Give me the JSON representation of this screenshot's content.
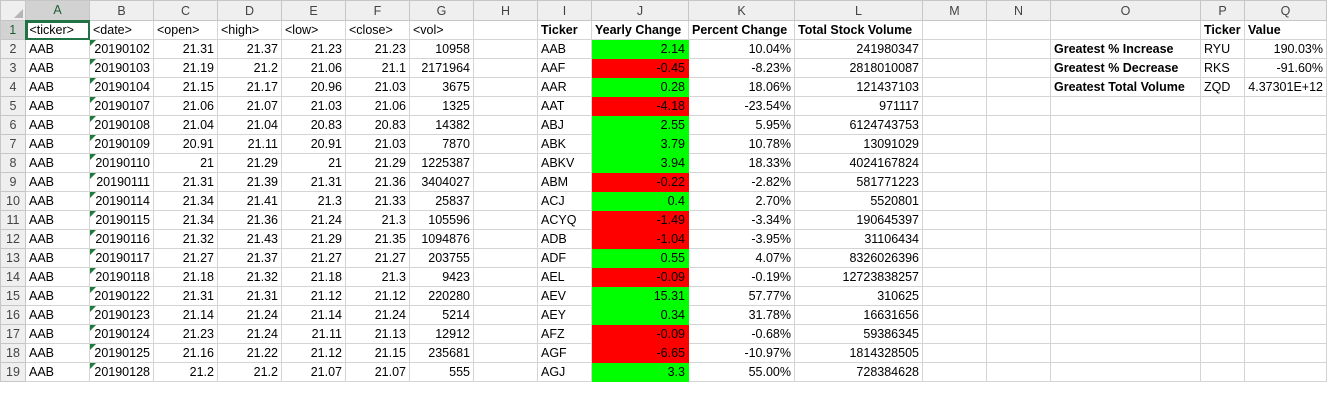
{
  "columns": [
    "A",
    "B",
    "C",
    "D",
    "E",
    "F",
    "G",
    "H",
    "I",
    "J",
    "K",
    "L",
    "M",
    "N",
    "O",
    "P",
    "Q"
  ],
  "header_row": [
    "<ticker>",
    "<date>",
    "<open>",
    "<high>",
    "<low>",
    "<close>",
    "<vol>"
  ],
  "raw_rows": [
    [
      "AAB",
      "20190102",
      "21.31",
      "21.37",
      "21.23",
      "21.23",
      "10958"
    ],
    [
      "AAB",
      "20190103",
      "21.19",
      "21.2",
      "21.06",
      "21.1",
      "2171964"
    ],
    [
      "AAB",
      "20190104",
      "21.15",
      "21.17",
      "20.96",
      "21.03",
      "3675"
    ],
    [
      "AAB",
      "20190107",
      "21.06",
      "21.07",
      "21.03",
      "21.06",
      "1325"
    ],
    [
      "AAB",
      "20190108",
      "21.04",
      "21.04",
      "20.83",
      "20.83",
      "14382"
    ],
    [
      "AAB",
      "20190109",
      "20.91",
      "21.11",
      "20.91",
      "21.03",
      "7870"
    ],
    [
      "AAB",
      "20190110",
      "21",
      "21.29",
      "21",
      "21.29",
      "1225387"
    ],
    [
      "AAB",
      "20190111",
      "21.31",
      "21.39",
      "21.31",
      "21.36",
      "3404027"
    ],
    [
      "AAB",
      "20190114",
      "21.34",
      "21.41",
      "21.3",
      "21.33",
      "25837"
    ],
    [
      "AAB",
      "20190115",
      "21.34",
      "21.36",
      "21.24",
      "21.3",
      "105596"
    ],
    [
      "AAB",
      "20190116",
      "21.32",
      "21.43",
      "21.29",
      "21.35",
      "1094876"
    ],
    [
      "AAB",
      "20190117",
      "21.27",
      "21.37",
      "21.27",
      "21.27",
      "203755"
    ],
    [
      "AAB",
      "20190118",
      "21.18",
      "21.32",
      "21.18",
      "21.3",
      "9423"
    ],
    [
      "AAB",
      "20190122",
      "21.31",
      "21.31",
      "21.12",
      "21.12",
      "220280"
    ],
    [
      "AAB",
      "20190123",
      "21.14",
      "21.24",
      "21.14",
      "21.24",
      "5214"
    ],
    [
      "AAB",
      "20190124",
      "21.23",
      "21.24",
      "21.11",
      "21.13",
      "12912"
    ],
    [
      "AAB",
      "20190125",
      "21.16",
      "21.22",
      "21.12",
      "21.15",
      "235681"
    ],
    [
      "AAB",
      "20190128",
      "21.2",
      "21.2",
      "21.07",
      "21.07",
      "555"
    ]
  ],
  "summary_headers": [
    "Ticker",
    "Yearly Change",
    "Percent Change",
    "Total Stock Volume"
  ],
  "summary_rows": [
    [
      "AAB",
      "2.14",
      "10.04%",
      "241980347"
    ],
    [
      "AAF",
      "-0.45",
      "-8.23%",
      "2818010087"
    ],
    [
      "AAR",
      "0.28",
      "18.06%",
      "121437103"
    ],
    [
      "AAT",
      "-4.18",
      "-23.54%",
      "971117"
    ],
    [
      "ABJ",
      "2.55",
      "5.95%",
      "6124743753"
    ],
    [
      "ABK",
      "3.79",
      "10.78%",
      "13091029"
    ],
    [
      "ABKV",
      "3.94",
      "18.33%",
      "4024167824"
    ],
    [
      "ABM",
      "-0.22",
      "-2.82%",
      "581771223"
    ],
    [
      "ACJ",
      "0.4",
      "2.70%",
      "5520801"
    ],
    [
      "ACYQ",
      "-1.49",
      "-3.34%",
      "190645397"
    ],
    [
      "ADB",
      "-1.04",
      "-3.95%",
      "31106434"
    ],
    [
      "ADF",
      "0.55",
      "4.07%",
      "8326026396"
    ],
    [
      "AEL",
      "-0.09",
      "-0.19%",
      "12723838257"
    ],
    [
      "AEV",
      "15.31",
      "57.77%",
      "310625"
    ],
    [
      "AEY",
      "0.34",
      "31.78%",
      "16631656"
    ],
    [
      "AFZ",
      "-0.09",
      "-0.68%",
      "59386345"
    ],
    [
      "AGF",
      "-6.65",
      "-10.97%",
      "1814328505"
    ],
    [
      "AGJ",
      "3.3",
      "55.00%",
      "728384628"
    ]
  ],
  "greatest_headers": [
    "Ticker",
    "Value"
  ],
  "greatest_rows": [
    [
      "Greatest % Increase",
      "RYU",
      "190.03%"
    ],
    [
      "Greatest % Decrease",
      "RKS",
      "-91.60%"
    ],
    [
      "Greatest Total Volume",
      "ZQD",
      "4.37301E+12"
    ]
  ],
  "colors": {
    "positive_fill": "#00ff00",
    "negative_fill": "#ff0000",
    "selection": "#217346"
  }
}
